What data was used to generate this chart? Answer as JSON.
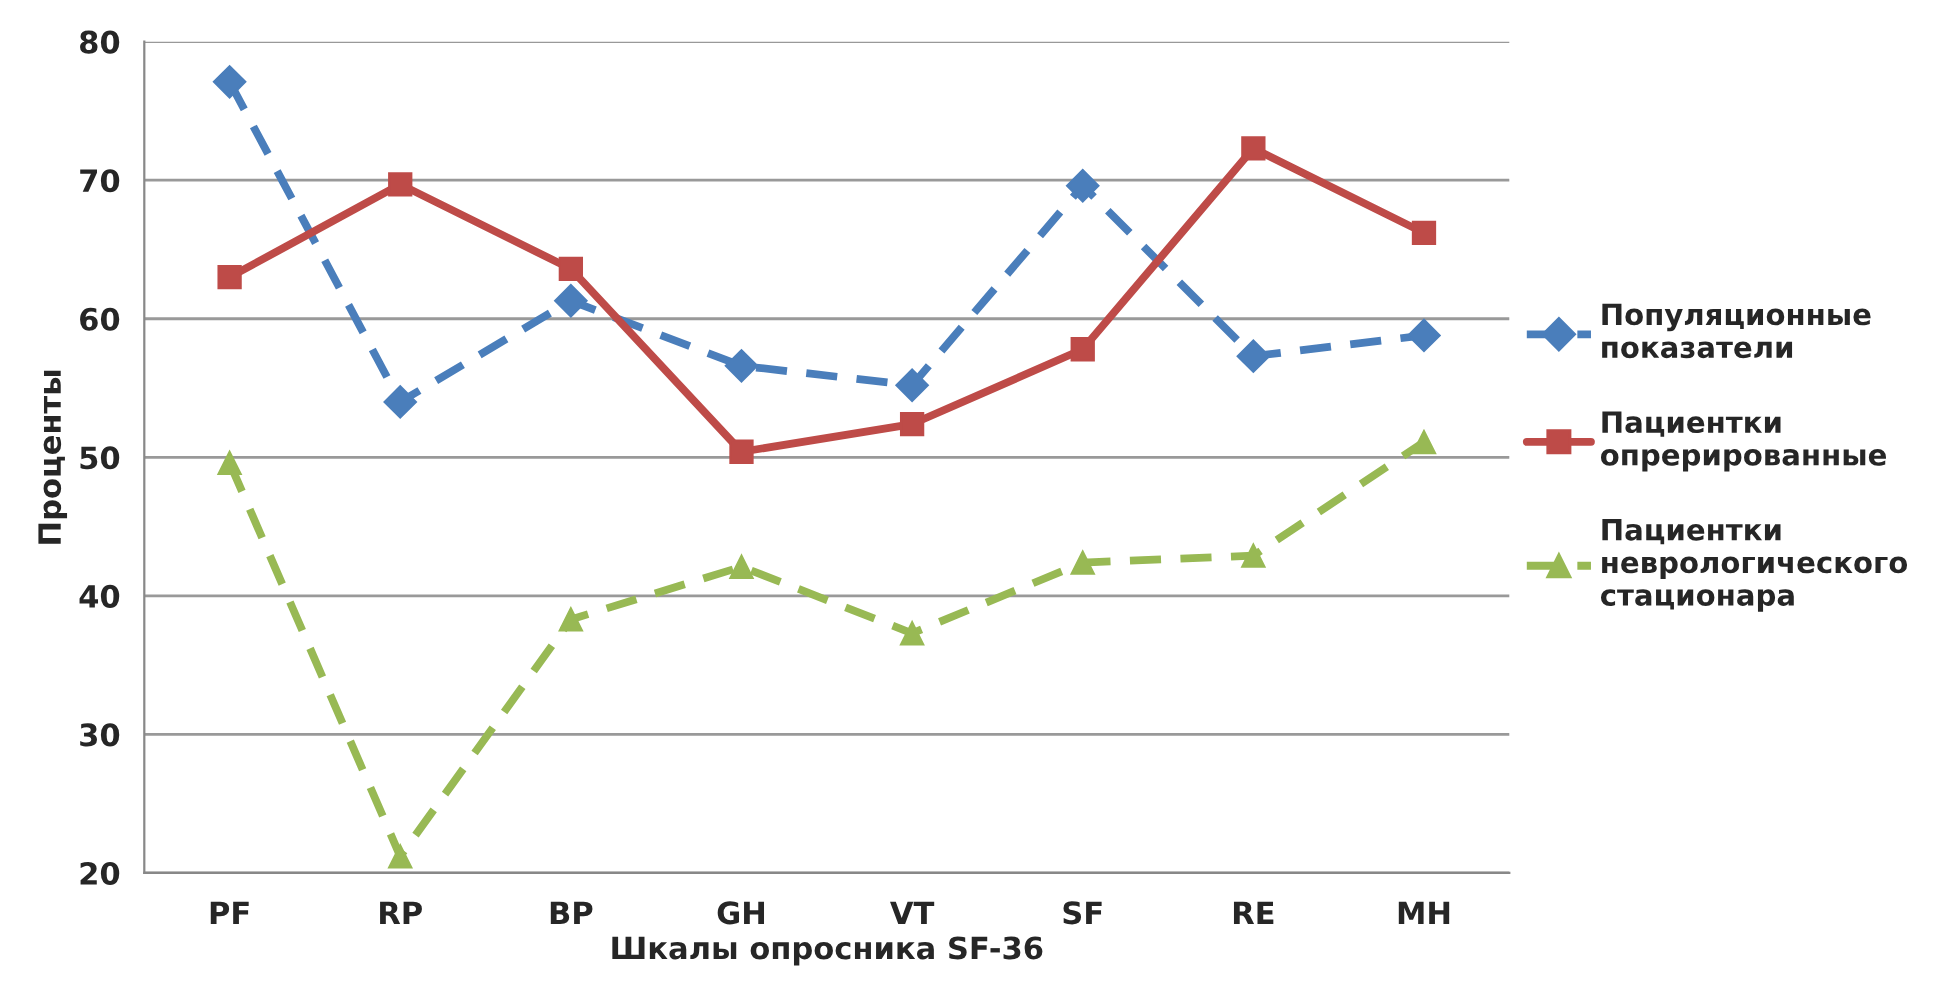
{
  "chart_data": {
    "type": "line",
    "xlabel": "Шкалы опросника SF-36",
    "ylabel": "Проценты",
    "categories": [
      "PF",
      "RP",
      "BP",
      "GH",
      "VT",
      "SF",
      "RE",
      "MH"
    ],
    "series": [
      {
        "name": "Популяционные показатели",
        "color": "#4a7ebb",
        "marker": "diamond",
        "line_style": "dashed",
        "values": [
          77.1,
          54.0,
          61.3,
          56.6,
          55.2,
          69.6,
          57.3,
          58.8
        ]
      },
      {
        "name": "Пациентки опрерированные",
        "color": "#be4b48",
        "marker": "square",
        "line_style": "solid",
        "values": [
          63.0,
          69.7,
          63.6,
          50.4,
          52.4,
          57.8,
          72.3,
          66.2
        ]
      },
      {
        "name": "Пациентки неврологического стационара",
        "color": "#98b954",
        "marker": "triangle",
        "line_style": "dashed",
        "values": [
          49.6,
          21.2,
          38.3,
          42.1,
          37.3,
          42.4,
          42.9,
          51.1
        ]
      }
    ],
    "ylim": [
      20,
      80
    ],
    "yticks": [
      20,
      30,
      40,
      50,
      60,
      70,
      80
    ],
    "grid": "y",
    "legend": "right"
  }
}
